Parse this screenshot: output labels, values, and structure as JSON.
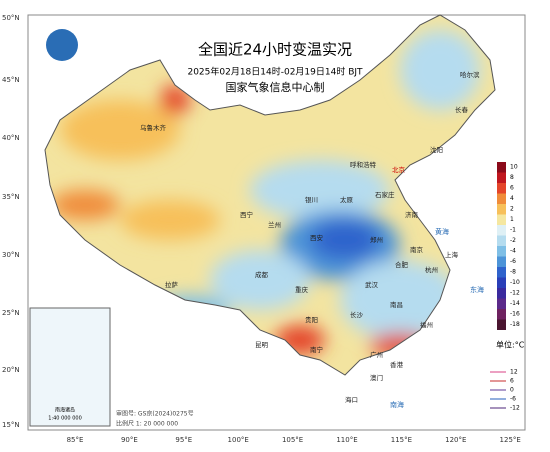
{
  "header": {
    "title": "全国近24小时变温实况",
    "subtitle": "2025年02月18日14时-02月19日14时 BJT",
    "agency": "国家气象信息中心制"
  },
  "lat_labels": [
    "50°N",
    "45°N",
    "40°N",
    "35°N",
    "30°N",
    "25°N",
    "20°N",
    "15°N"
  ],
  "lon_labels": [
    "85°E",
    "90°E",
    "95°E",
    "100°E",
    "105°E",
    "110°E",
    "115°E",
    "120°E",
    "125°E"
  ],
  "legend": {
    "unit": "单位:°C",
    "items": [
      {
        "value": 10,
        "color": "#8b0a1a"
      },
      {
        "value": 8,
        "color": "#c0171f"
      },
      {
        "value": 6,
        "color": "#e4452a"
      },
      {
        "value": 4,
        "color": "#f08c3a"
      },
      {
        "value": 2,
        "color": "#f7c05a"
      },
      {
        "value": 1,
        "color": "#f5e7a0"
      },
      {
        "value": -1,
        "color": "#dff0f5"
      },
      {
        "value": -2,
        "color": "#b5dcef"
      },
      {
        "value": -4,
        "color": "#7fbfe6"
      },
      {
        "value": -6,
        "color": "#4d94d8"
      },
      {
        "value": -8,
        "color": "#2f63cc"
      },
      {
        "value": -10,
        "color": "#2a3fb8"
      },
      {
        "value": -12,
        "color": "#3a2a9e"
      },
      {
        "value": -14,
        "color": "#5b2a8a"
      },
      {
        "value": -16,
        "color": "#6e2260"
      },
      {
        "value": -18,
        "color": "#4a1530"
      }
    ]
  },
  "line_legend": [
    {
      "value": 12,
      "color": "#e0609a"
    },
    {
      "value": 6,
      "color": "#d05050"
    },
    {
      "value": 0,
      "color": "#7a5aa8"
    },
    {
      "value": -6,
      "color": "#4a7ac8"
    },
    {
      "value": -12,
      "color": "#6a4a90"
    }
  ],
  "cities": [
    "乌鲁木齐",
    "北京",
    "呼和浩特",
    "石家庄",
    "太原",
    "济南",
    "郑州",
    "西安",
    "银川",
    "兰州",
    "西宁",
    "拉萨",
    "成都",
    "重庆",
    "武汉",
    "长沙",
    "南昌",
    "合肥",
    "南京",
    "杭州",
    "上海",
    "福州",
    "广州",
    "南宁",
    "贵阳",
    "昆明",
    "海口",
    "香港",
    "澳门",
    "长春",
    "哈尔滨",
    "沈阳"
  ],
  "seas": [
    "黄海",
    "东海",
    "南海"
  ],
  "inset": {
    "label": "南海诸岛",
    "scale": "1:40 000 000"
  },
  "footer": {
    "review": "审图号: GS京(2024)0275号",
    "scale": "比例尺 1: 20 000 000"
  }
}
